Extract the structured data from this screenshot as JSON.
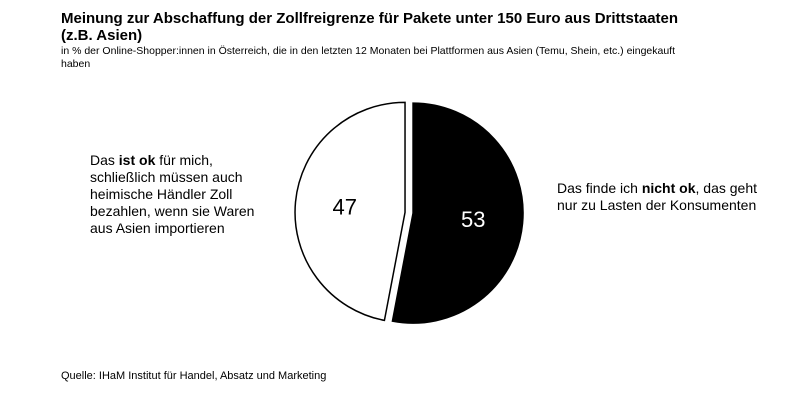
{
  "title": "Meinung zur Abschaffung der Zollfreigrenze für Pakete unter 150 Euro aus Drittstaaten (z.B. Asien)",
  "subtitle": "in % der Online-Shopper:innen  in Österreich, die in den letzten 12 Monaten bei Plattformen aus Asien (Temu,  Shein, etc.) eingekauft  haben",
  "left_label": {
    "pre": "Das ",
    "bold": "ist ok",
    "post": " für mich, schließlich müssen auch heimische Händler Zoll bezahlen, wenn sie Waren aus Asien importieren"
  },
  "right_label": {
    "pre": "Das finde ich ",
    "bold": "nicht ok",
    "post": ", das geht nur zu Lasten der Konsumenten"
  },
  "source": "Quelle: IHaM Institut für Handel, Absatz und Marketing",
  "chart_data": {
    "type": "pie",
    "slices": [
      {
        "label": "Das ist ok für mich, schließlich müssen auch heimische Händler Zoll bezahlen, wenn sie Waren aus Asien importieren",
        "value": 47,
        "display": "47",
        "color": "#ffffff",
        "text_color": "#000000"
      },
      {
        "label": "Das finde ich nicht ok, das geht nur zu Lasten der Konsumenten",
        "value": 53,
        "display": "53",
        "color": "#000000",
        "text_color": "#ffffff"
      }
    ]
  }
}
